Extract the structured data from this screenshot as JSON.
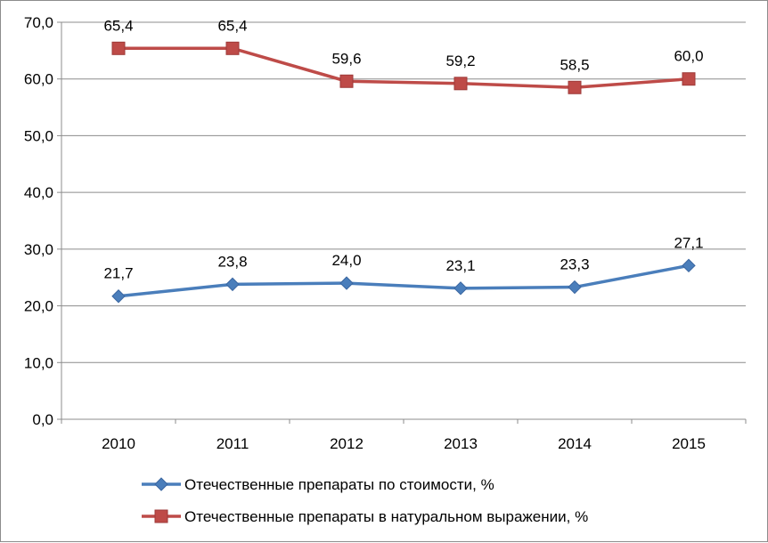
{
  "chart_data": {
    "type": "line",
    "categories": [
      "2010",
      "2011",
      "2012",
      "2013",
      "2014",
      "2015"
    ],
    "ylim": [
      0,
      70
    ],
    "yticks": [
      "0,0",
      "10,0",
      "20,0",
      "30,0",
      "40,0",
      "50,0",
      "60,0",
      "70,0"
    ],
    "grid": true,
    "legend_position": "bottom",
    "series": [
      {
        "name": "Отечественные препараты по стоимости, %",
        "values": [
          21.7,
          23.8,
          24.0,
          23.1,
          23.3,
          27.1
        ],
        "labels": [
          "21,7",
          "23,8",
          "24,0",
          "23,1",
          "23,3",
          "27,1"
        ],
        "color": "#4a7ebb",
        "marker": "diamond"
      },
      {
        "name": "Отечественные препараты в натуральном выражении, %",
        "values": [
          65.4,
          65.4,
          59.6,
          59.2,
          58.5,
          60.0
        ],
        "labels": [
          "65,4",
          "65,4",
          "59,6",
          "59,2",
          "58,5",
          "60,0"
        ],
        "color": "#be4b48",
        "marker": "square"
      }
    ]
  }
}
